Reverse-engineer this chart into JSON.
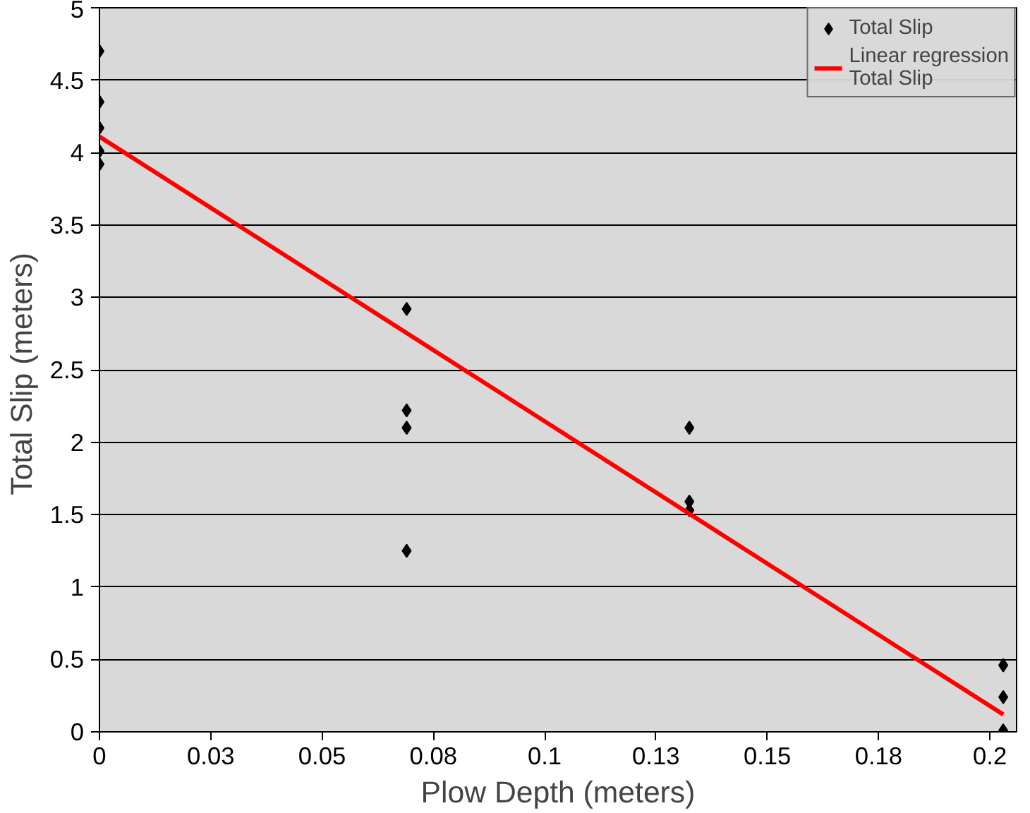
{
  "chart_data": {
    "type": "scatter",
    "xlabel": "Plow Depth (meters)",
    "ylabel": "Total Slip  (meters)",
    "xlim": [
      0,
      0.206
    ],
    "ylim": [
      0,
      5
    ],
    "xticks": [
      0,
      {
        "value": 0.025,
        "label": "0.03"
      },
      0.05,
      {
        "value": 0.075,
        "label": "0.08"
      },
      0.1,
      {
        "value": 0.125,
        "label": "0.13"
      },
      0.15,
      {
        "value": 0.175,
        "label": "0.18"
      },
      0.2
    ],
    "yticks": [
      0,
      0.5,
      1,
      1.5,
      2,
      2.5,
      3,
      3.5,
      4,
      4.5,
      5
    ],
    "grid": "y",
    "legend": "top right",
    "series": [
      {
        "name": "Total Slip",
        "marker": "diamond",
        "color": "#000000",
        "x": [
          0,
          0,
          0,
          0,
          0,
          0.069,
          0.069,
          0.069,
          0.069,
          0.1325,
          0.1325,
          0.1325,
          0.203,
          0.203,
          0.203
        ],
        "values": [
          4.7,
          4.35,
          4.17,
          4.01,
          3.92,
          2.92,
          2.22,
          2.1,
          1.25,
          2.1,
          1.59,
          1.53,
          0.46,
          0.24,
          0.01
        ]
      },
      {
        "name": "Linear regression\nTotal Slip",
        "type": "line",
        "color": "#ff0000",
        "x": [
          0,
          0.203
        ],
        "values": [
          4.11,
          0.12
        ]
      }
    ]
  }
}
